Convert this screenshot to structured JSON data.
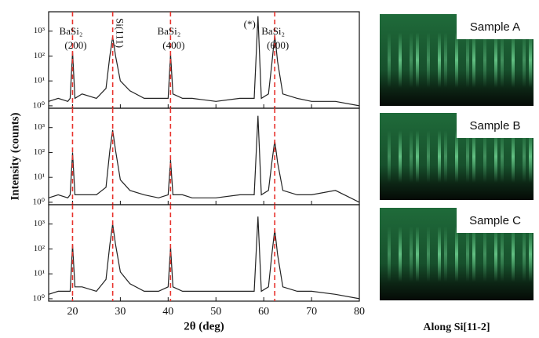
{
  "chart_data": [
    {
      "type": "line",
      "log_y": true,
      "xlim": [
        15,
        80
      ],
      "ylim": [
        0.8,
        6000
      ],
      "xticks": [
        20,
        30,
        40,
        50,
        60,
        70,
        80
      ],
      "yticks": [
        {
          "value": 1,
          "label": "10⁰"
        },
        {
          "value": 10,
          "label": "10¹"
        },
        {
          "value": 100,
          "label": "10²"
        },
        {
          "value": 1000,
          "label": "10³"
        }
      ],
      "reference_lines": [
        20,
        28.4,
        40.5,
        62.3
      ],
      "reference_color": "#e8322c",
      "annotations": [
        {
          "lines": [
            "BaSi₂",
            "(200)"
          ],
          "x": 20
        },
        {
          "lines": [
            "Si(111)"
          ],
          "x": 28.4,
          "vertical": true
        },
        {
          "lines": [
            "BaSi₂",
            "(400)"
          ],
          "x": 40.5
        },
        {
          "lines": [
            "(*)"
          ],
          "x": 58.8
        },
        {
          "lines": [
            "BaSi₂",
            "(600)"
          ],
          "x": 62.3
        }
      ],
      "series": [
        {
          "color": "#222222",
          "x": [
            15,
            17,
            19,
            19.5,
            20,
            20.5,
            22,
            25,
            27,
            27.8,
            28.4,
            29,
            30,
            32,
            35,
            38,
            40,
            40.5,
            41,
            43,
            45,
            50,
            55,
            58,
            58.8,
            59.5,
            61,
            61.7,
            62.3,
            62.9,
            64,
            67,
            70,
            75,
            80
          ],
          "values": [
            1.5,
            2,
            1.5,
            2,
            150,
            2,
            3,
            2,
            5,
            100,
            600,
            100,
            10,
            4,
            2,
            2,
            2,
            120,
            3,
            2,
            2,
            1.5,
            2,
            2,
            4000,
            2,
            3,
            50,
            700,
            60,
            3,
            2,
            1.5,
            1.5,
            1
          ]
        }
      ]
    },
    {
      "type": "line",
      "log_y": true,
      "xlim": [
        15,
        80
      ],
      "ylim": [
        0.8,
        6000
      ],
      "y_label": "Intensity (counts)",
      "xticks": [
        20,
        30,
        40,
        50,
        60,
        70,
        80
      ],
      "yticks": [
        {
          "value": 1,
          "label": "10⁰"
        },
        {
          "value": 10,
          "label": "10¹"
        },
        {
          "value": 100,
          "label": "10²"
        },
        {
          "value": 1000,
          "label": "10³"
        }
      ],
      "reference_lines": [
        20,
        28.4,
        40.5,
        62.3
      ],
      "reference_color": "#e8322c",
      "series": [
        {
          "color": "#222222",
          "x": [
            15,
            17,
            19,
            19.5,
            20,
            20.5,
            22,
            25,
            27,
            27.8,
            28.4,
            29,
            30,
            32,
            35,
            38,
            40,
            40.5,
            41,
            43,
            45,
            50,
            55,
            58,
            58.8,
            59.5,
            61,
            61.7,
            62.3,
            62.9,
            64,
            67,
            70,
            75,
            80
          ],
          "values": [
            1.5,
            2,
            1.5,
            2,
            100,
            2,
            2,
            2,
            4,
            120,
            800,
            120,
            8,
            3,
            2,
            1.5,
            2,
            50,
            2,
            2,
            1.5,
            1.5,
            2,
            2,
            3000,
            2,
            3,
            40,
            300,
            40,
            3,
            2,
            2,
            3,
            1
          ]
        }
      ]
    },
    {
      "type": "line",
      "log_y": true,
      "xlim": [
        15,
        80
      ],
      "ylim": [
        0.8,
        6000
      ],
      "x_label": "2θ (deg)",
      "xticks": [
        20,
        30,
        40,
        50,
        60,
        70,
        80
      ],
      "yticks": [
        {
          "value": 1,
          "label": "10⁰"
        },
        {
          "value": 10,
          "label": "10¹"
        },
        {
          "value": 100,
          "label": "10²"
        },
        {
          "value": 1000,
          "label": "10³"
        }
      ],
      "reference_lines": [
        20,
        28.4,
        40.5,
        62.3
      ],
      "reference_color": "#e8322c",
      "series": [
        {
          "color": "#222222",
          "x": [
            15,
            17,
            19,
            19.5,
            20,
            20.5,
            22,
            25,
            27,
            27.8,
            28.4,
            29,
            30,
            32,
            35,
            38,
            40,
            40.5,
            41,
            43,
            45,
            50,
            55,
            58,
            58.8,
            59.5,
            61,
            61.7,
            62.3,
            62.9,
            64,
            67,
            70,
            75,
            80
          ],
          "values": [
            1.5,
            2,
            2,
            2,
            150,
            3,
            3,
            2,
            6,
            150,
            1000,
            150,
            12,
            4,
            2,
            2,
            3,
            120,
            3,
            2,
            2,
            2,
            2,
            2,
            2000,
            2,
            3,
            60,
            600,
            60,
            3,
            2,
            2,
            1.5,
            1
          ]
        }
      ]
    }
  ],
  "images": [
    {
      "label": "Sample A"
    },
    {
      "label": "Sample B"
    },
    {
      "label": "Sample C"
    }
  ],
  "caption": "Along Si[11-2]"
}
